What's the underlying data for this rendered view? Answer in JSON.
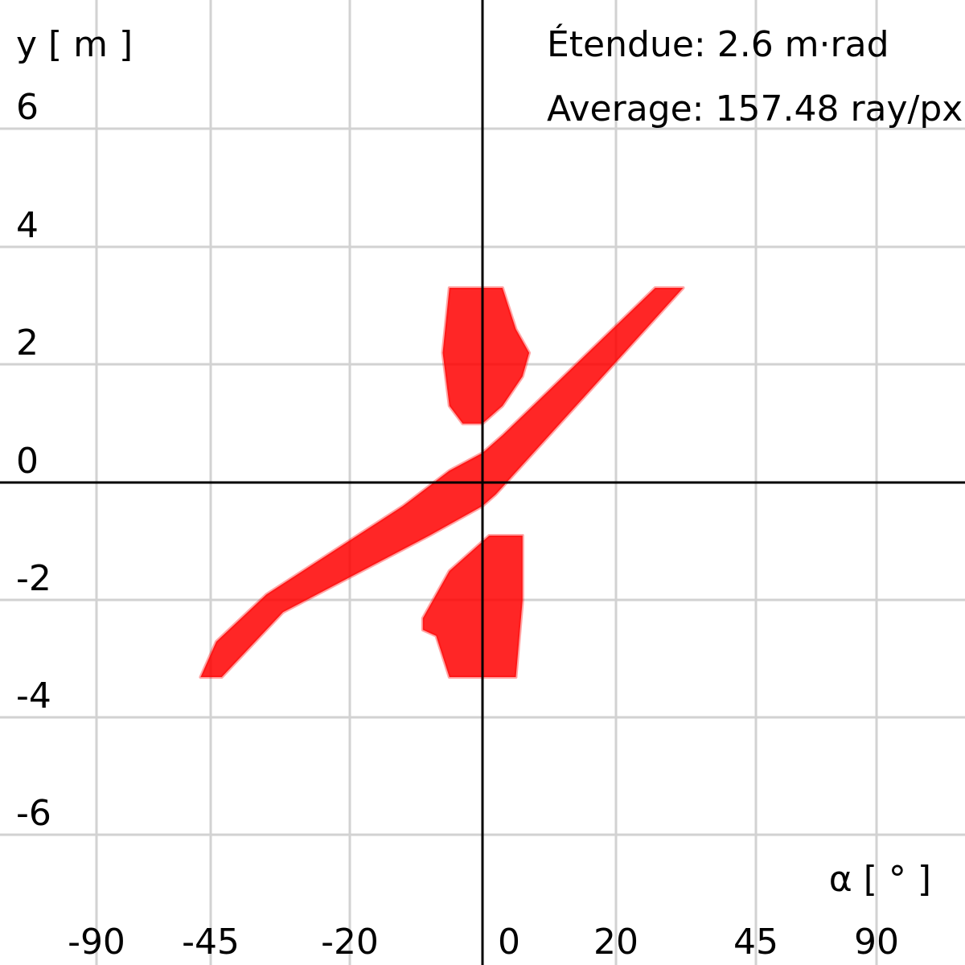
{
  "chart_data": {
    "type": "heatmap",
    "ylabel": "y [ m ]",
    "xlabel": "α [ ° ]",
    "x_ticks": [
      "-90",
      "-45",
      "-20",
      "0",
      "20",
      "45",
      "90"
    ],
    "y_ticks": [
      "6",
      "4",
      "2",
      "0",
      "-2",
      "-4",
      "-6"
    ],
    "annotations": {
      "etendue": "Étendue: 2.6 m·rad",
      "average": "Average: 157.48 ray/px"
    },
    "grid": true,
    "color": "#ff0000",
    "regions": [
      {
        "name": "upper-lobe",
        "polygon": [
          [
            -5,
            3.3
          ],
          [
            3,
            3.3
          ],
          [
            5,
            2.6
          ],
          [
            7,
            2.2
          ],
          [
            6,
            1.8
          ],
          [
            3,
            1.3
          ],
          [
            0,
            1.0
          ],
          [
            -3,
            1.0
          ],
          [
            -5,
            1.3
          ],
          [
            -6,
            2.2
          ]
        ]
      },
      {
        "name": "lower-lobe",
        "polygon": [
          [
            1,
            -0.9
          ],
          [
            6,
            -0.9
          ],
          [
            6,
            -2.0
          ],
          [
            5,
            -3.3
          ],
          [
            -5,
            -3.3
          ],
          [
            -7,
            -2.6
          ],
          [
            -9,
            -2.5
          ],
          [
            -9,
            -2.3
          ],
          [
            -5,
            -1.5
          ]
        ]
      },
      {
        "name": "diagonal-band",
        "polygon": [
          [
            27,
            3.3
          ],
          [
            32,
            3.3
          ],
          [
            2,
            -0.2
          ],
          [
            0,
            -0.4
          ],
          [
            -8,
            -0.9
          ],
          [
            -32,
            -2.2
          ],
          [
            -43,
            -3.3
          ],
          [
            -49,
            -3.3
          ],
          [
            -44,
            -2.7
          ],
          [
            -35,
            -1.9
          ],
          [
            -12,
            -0.4
          ],
          [
            -5,
            0.2
          ],
          [
            0,
            0.5
          ],
          [
            3,
            0.8
          ]
        ]
      }
    ]
  }
}
